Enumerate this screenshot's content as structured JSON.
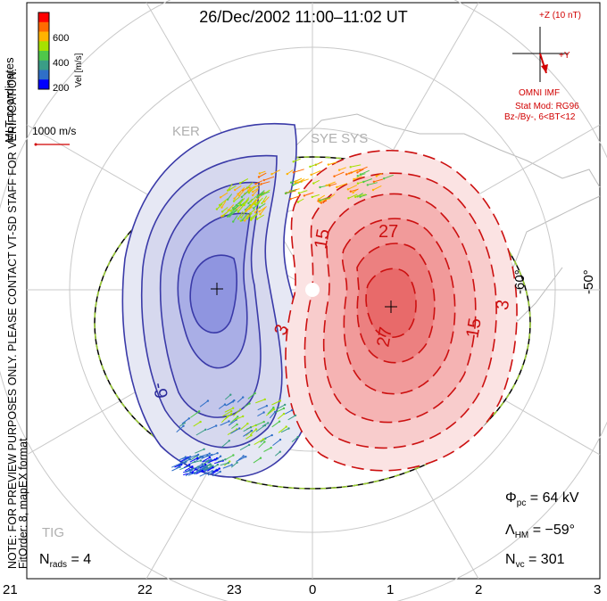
{
  "title": "26/Dec/2002 11:00–11:02 UT",
  "colorbar": {
    "label": "Vel [m/s]",
    "ticks": [
      "600",
      "400",
      "200"
    ],
    "colors": [
      "#ff0000",
      "#ff6a00",
      "#ffb300",
      "#a6e100",
      "#4fc84a",
      "#3a9d86",
      "#2f6fc7",
      "#0000ff"
    ]
  },
  "coordinates_label": "MLT coordinates",
  "velocity_scale": "1000 m/s",
  "vertical_note": "NOTE: FOR PREVIEW PURPOSES ONLY. PLEASE CONTACT VT-SD STAFF FOR VERIFICATION.",
  "fit_order": "FitOrder: 8, mapEX format",
  "imf": {
    "bz_label": "+Z (10 nT)",
    "by_label": "+Y",
    "source": "OMNI IMF",
    "stat_mod": "Stat Mod: RG96",
    "condition": "Bz-/By-, 6<BT<12"
  },
  "stations": [
    "KER",
    "SYE SYS",
    "TIG"
  ],
  "latitude_labels": [
    "-60°",
    "-50°"
  ],
  "contour_labels_negative": [
    "-9"
  ],
  "contour_labels_positive": [
    "15",
    "27",
    "3",
    "27",
    "15",
    "3"
  ],
  "stats": {
    "phi_sym": "Φ",
    "phi_sub": "pc",
    "phi_value": "= 64 kV",
    "lambda_sym": "Λ",
    "lambda_sub": "HM",
    "lambda_value": "= −59°",
    "nvc_sym": "N",
    "nvc_sub": "vc",
    "nvc_value": "= 301",
    "nrads_sym": "N",
    "nrads_sub": "rads",
    "nrads_value": "= 4"
  },
  "mlt_labels": [
    "21",
    "22",
    "23",
    "0",
    "1",
    "2",
    "3"
  ],
  "potential": {
    "negative_center_mlt": "23.2",
    "positive_center_mlt": "0.9"
  }
}
